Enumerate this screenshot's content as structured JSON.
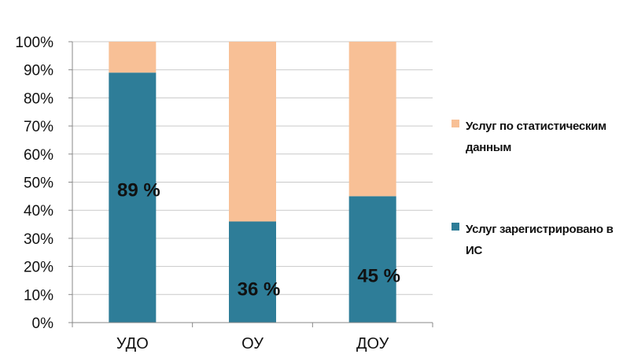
{
  "chart_data": {
    "type": "bar",
    "stacked": true,
    "categories": [
      "УДО",
      "ОУ",
      "ДОУ"
    ],
    "series": [
      {
        "name": "Услуг зарегистрировано в ИС",
        "values": [
          89,
          36,
          45
        ],
        "color": "#2e7d98"
      },
      {
        "name": "Услуг по статистическим данным",
        "values": [
          11,
          64,
          55
        ],
        "color": "#f8c096"
      }
    ],
    "data_labels": [
      "89 %",
      "36 %",
      "45 %"
    ],
    "y_ticks": [
      "0%",
      "10%",
      "20%",
      "30%",
      "40%",
      "50%",
      "60%",
      "70%",
      "80%",
      "90%",
      "100%"
    ],
    "ylim": [
      0,
      100
    ],
    "grid": true,
    "legend_position": "right"
  },
  "legend": {
    "items": [
      {
        "label": "Услуг по статистическим данным",
        "color": "#f8c096"
      },
      {
        "label": "Услуг зарегистрировано в ИС",
        "color": "#2e7d98"
      }
    ]
  }
}
